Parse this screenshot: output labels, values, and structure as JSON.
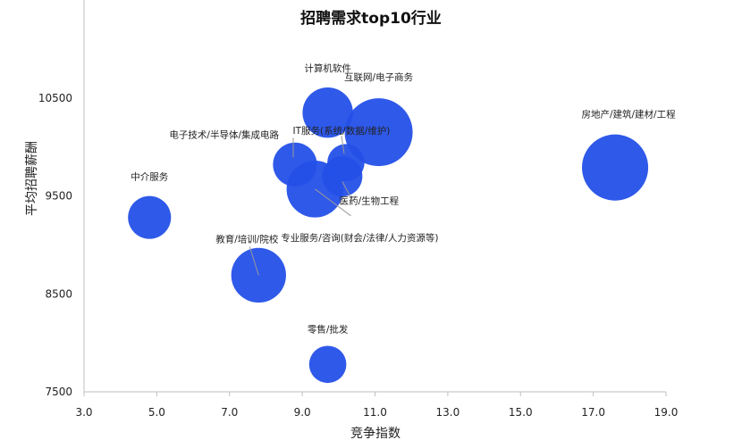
{
  "chart_data": {
    "type": "scatter",
    "title": "招聘需求top10行业",
    "xlabel": "竞争指数",
    "ylabel": "平均招聘薪酬",
    "xlim": [
      3.0,
      19.0
    ],
    "ylim": [
      7500,
      11500
    ],
    "x_ticks": [
      3.0,
      5.0,
      7.0,
      9.0,
      11.0,
      13.0,
      15.0,
      17.0,
      19.0
    ],
    "x_tick_labels": [
      "3.0",
      "5.0",
      "7.0",
      "9.0",
      "11.0",
      "13.0",
      "15.0",
      "17.0",
      "19.0"
    ],
    "y_ticks": [
      7500,
      8500,
      9500,
      10500
    ],
    "y_tick_labels": [
      "7500",
      "8500",
      "9500",
      "10500"
    ],
    "grid": false,
    "bubble_color": "#2450e8",
    "points": [
      {
        "label": "计算机软件",
        "x": 9.7,
        "y": 10350,
        "size": 0.55
      },
      {
        "label": "互联网/电子商务",
        "x": 11.1,
        "y": 10150,
        "size": 1.0
      },
      {
        "label": "电子技术/半导体/集成电路",
        "x": 8.8,
        "y": 9820,
        "size": 0.42
      },
      {
        "label": "IT服务(系统/数据/维护)",
        "x": 10.2,
        "y": 9840,
        "size": 0.3
      },
      {
        "label": "医药/生物工程",
        "x": 10.1,
        "y": 9700,
        "size": 0.35
      },
      {
        "label": "专业服务/咨询(财会/法律/人力资源等)",
        "x": 9.35,
        "y": 9570,
        "size": 0.7
      },
      {
        "label": "房地产/建筑/建材/工程",
        "x": 17.6,
        "y": 9790,
        "size": 0.95
      },
      {
        "label": "中介服务",
        "x": 4.8,
        "y": 9280,
        "size": 0.4
      },
      {
        "label": "教育/培训/院校",
        "x": 7.8,
        "y": 8690,
        "size": 0.65
      },
      {
        "label": "零售/批发",
        "x": 9.7,
        "y": 7780,
        "size": 0.3
      }
    ]
  }
}
